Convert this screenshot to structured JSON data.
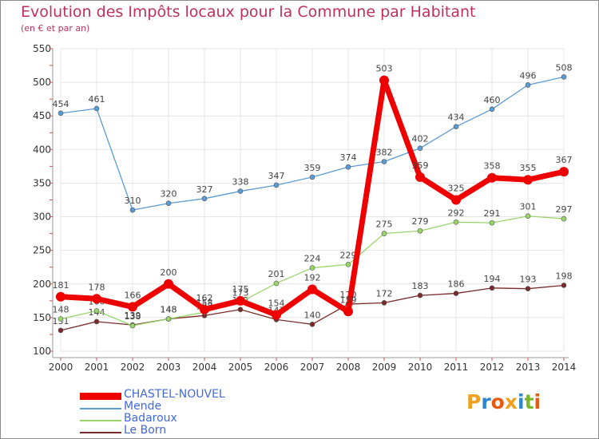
{
  "title": "Evolution des Impôts locaux pour la Commune par Habitant",
  "subtitle": "(en € et par an)",
  "logo": {
    "text": "Proxiti",
    "letter_colors": [
      "#f0a020",
      "#2e86d0",
      "#e85a10",
      "#f0a020",
      "#2e86d0",
      "#78b828",
      "#e85a10"
    ]
  },
  "chart_data": {
    "type": "line",
    "title": "Evolution des Impôts locaux pour la Commune par Habitant",
    "ylabel": "(en € et par an)",
    "xlabel": "",
    "x": [
      "2000",
      "2001",
      "2002",
      "2003",
      "2004",
      "2005",
      "2006",
      "2007",
      "2008",
      "2009",
      "2010",
      "2011",
      "2012",
      "2013",
      "2014"
    ],
    "ylim": [
      100,
      550
    ],
    "yticks": [
      "100",
      "150",
      "200",
      "250",
      "300",
      "350",
      "400",
      "450",
      "500",
      "550"
    ],
    "grid": true,
    "legend_position": "bottom-left",
    "series": [
      {
        "name": "Le Born",
        "color": "#7a2a2a",
        "values": [
          131,
          144,
          139,
          148,
          153,
          162,
          147,
          140,
          170,
          172,
          183,
          186,
          194,
          193,
          198
        ],
        "labels": [
          "131",
          "144",
          "139",
          "148",
          "153",
          "162",
          "147",
          "140",
          "170",
          "172",
          "183",
          "186",
          "194",
          "193",
          "198"
        ]
      },
      {
        "name": "Badaroux",
        "color": "#99d66a",
        "values": [
          148,
          160,
          138,
          148,
          158,
          173,
          201,
          224,
          229,
          275,
          279,
          292,
          291,
          301,
          297
        ],
        "labels": [
          "148",
          "160",
          "138",
          "148",
          "158",
          "173",
          "201",
          "224",
          "229",
          "275",
          "279",
          "292",
          "291",
          "301",
          "297"
        ]
      },
      {
        "name": "Mende",
        "color": "#5b9bd5",
        "values": [
          454,
          461,
          310,
          320,
          327,
          338,
          347,
          359,
          374,
          382,
          402,
          434,
          460,
          496,
          508
        ],
        "labels": [
          "454",
          "461",
          "310",
          "320",
          "327",
          "338",
          "347",
          "359",
          "374",
          "382",
          "402",
          "434",
          "460",
          "496",
          "508"
        ]
      },
      {
        "name": "CHASTEL-NOUVEL",
        "color": "#ee0000",
        "values": [
          181,
          178,
          166,
          200,
          162,
          175,
          154,
          192,
          159,
          503,
          359,
          325,
          358,
          355,
          367
        ],
        "labels": [
          "181",
          "178",
          "166",
          "200",
          "162",
          "175",
          "154",
          "192",
          "159",
          "503",
          "359",
          "325",
          "358",
          "355",
          "367"
        ]
      }
    ]
  },
  "legend": [
    {
      "name": "CHASTEL-NOUVEL",
      "color": "#ee0000",
      "label_color": "#4169e1"
    },
    {
      "name": "Mende",
      "color": "#5b9bd5",
      "label_color": "#4169e1"
    },
    {
      "name": "Badaroux",
      "color": "#99d66a",
      "label_color": "#4169e1"
    },
    {
      "name": "Le Born",
      "color": "#7a2a2a",
      "label_color": "#4169e1"
    }
  ]
}
